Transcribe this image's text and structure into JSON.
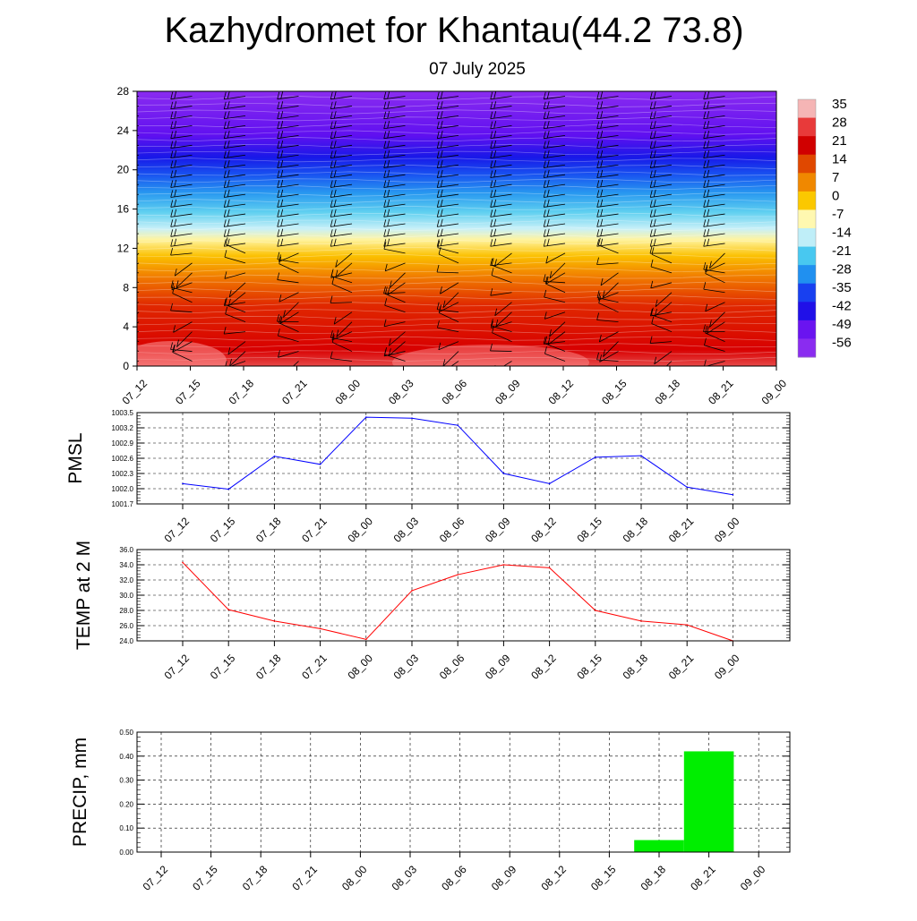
{
  "title": "Kazhydromet for Khantau(44.2 73.8)",
  "subtitle": "07 July 2025",
  "chart_data": [
    {
      "type": "heatmap",
      "x_categories": [
        "07_12",
        "07_15",
        "07_18",
        "07_21",
        "08_00",
        "08_03",
        "08_06",
        "08_09",
        "08_12",
        "08_15",
        "08_18",
        "08_21",
        "09_00"
      ],
      "ylim": [
        0,
        28
      ],
      "y_ticks": [
        0,
        4,
        8,
        12,
        16,
        20,
        24,
        28
      ],
      "colorbar_labels": [
        "35",
        "28",
        "21",
        "14",
        "7",
        "0",
        "-7",
        "-14",
        "-21",
        "-28",
        "-35",
        "-42",
        "-49",
        "-56"
      ],
      "colorbar_colors": [
        "#f5b5b5",
        "#e83a3a",
        "#d00000",
        "#e04800",
        "#f08800",
        "#fbc800",
        "#fff8b0",
        "#bfeef8",
        "#48c8f0",
        "#2090f0",
        "#1840f0",
        "#2010e8",
        "#6a14f0",
        "#8a2cf0"
      ],
      "overlay": "wind barbs"
    },
    {
      "type": "line",
      "ylabel": "PMSL",
      "x": [
        "07_12",
        "07_15",
        "07_18",
        "07_21",
        "08_00",
        "08_03",
        "08_06",
        "08_09",
        "08_12",
        "08_15",
        "08_18",
        "08_21",
        "09_00"
      ],
      "y_ticks": [
        "1001.7",
        "1002.0",
        "1002.3",
        "1002.6",
        "1002.9",
        "1003.2",
        "1003.5"
      ],
      "ylim": [
        1001.7,
        1003.5
      ],
      "values": [
        1002.1,
        1001.99,
        1002.64,
        1002.48,
        1003.41,
        1003.39,
        1003.25,
        1002.3,
        1002.1,
        1002.62,
        1002.65,
        1002.03,
        1001.88
      ],
      "color": "#0000ff",
      "grid": true
    },
    {
      "type": "line",
      "ylabel": "TEMP at 2 M",
      "x": [
        "07_12",
        "07_15",
        "07_18",
        "07_21",
        "08_00",
        "08_03",
        "08_06",
        "08_09",
        "08_12",
        "08_15",
        "08_18",
        "08_21",
        "09_00"
      ],
      "y_ticks": [
        "24.0",
        "26.0",
        "28.0",
        "30.0",
        "32.0",
        "34.0",
        "36.0"
      ],
      "ylim": [
        24,
        36
      ],
      "values": [
        34.3,
        28.1,
        26.6,
        25.6,
        24.2,
        30.6,
        32.7,
        34.0,
        33.6,
        28.0,
        26.6,
        26.1,
        24.0
      ],
      "color": "#ff0000",
      "grid": true
    },
    {
      "type": "bar",
      "ylabel": "PRECIP, mm",
      "x": [
        "07_12",
        "07_15",
        "07_18",
        "07_21",
        "08_00",
        "08_03",
        "08_06",
        "08_09",
        "08_12",
        "08_15",
        "08_18",
        "08_21",
        "09_00"
      ],
      "y_ticks": [
        "0.00",
        "0.10",
        "0.20",
        "0.30",
        "0.40",
        "0.50"
      ],
      "ylim": [
        0,
        0.5
      ],
      "values": [
        0,
        0,
        0,
        0,
        0,
        0,
        0,
        0,
        0,
        0,
        0.05,
        0.42,
        0
      ],
      "color": "#00ee00",
      "grid": true
    }
  ]
}
